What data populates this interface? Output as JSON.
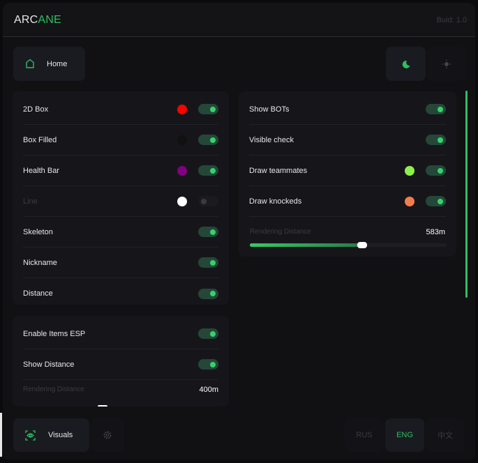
{
  "header": {
    "logo_a": "ARC",
    "logo_b": "ANE",
    "build": "Buid: 1.0"
  },
  "nav": {
    "home": "Home",
    "visuals": "Visuals"
  },
  "theme": {
    "dark": "moon-icon",
    "light": "sun-icon",
    "active": "dark"
  },
  "languages": {
    "items": [
      "RUS",
      "ENG",
      "中文"
    ],
    "active": "ENG"
  },
  "accent": "#2fbf60",
  "player_esp": {
    "rows": [
      {
        "label": "2D Box",
        "color": "#ff0000",
        "on": true
      },
      {
        "label": "Box Filled",
        "color": "#111111",
        "on": true
      },
      {
        "label": "Health Bar",
        "color": "#800080",
        "on": true
      },
      {
        "label": "Line",
        "color": "#ffffff",
        "on": false,
        "disabled": true
      },
      {
        "label": "Skeleton",
        "on": true
      },
      {
        "label": "Nickname",
        "on": true
      },
      {
        "label": "Distance",
        "on": true
      }
    ]
  },
  "items_esp": {
    "rows": [
      {
        "label": "Enable Items ESP",
        "on": true
      },
      {
        "label": "Show Distance",
        "on": true
      }
    ],
    "distance_label": "Rendering Distance",
    "distance_value": "400m"
  },
  "bots": {
    "rows": [
      {
        "label": "Show BOTs",
        "on": true
      },
      {
        "label": "Visible check",
        "on": true
      },
      {
        "label": "Draw teammates",
        "color": "#8ef04a",
        "on": true
      },
      {
        "label": "Draw knockeds",
        "color": "#f47c4c",
        "on": true
      }
    ],
    "distance_label": "Rendering Distance",
    "distance_value": "583m",
    "distance_fraction": 0.57
  }
}
